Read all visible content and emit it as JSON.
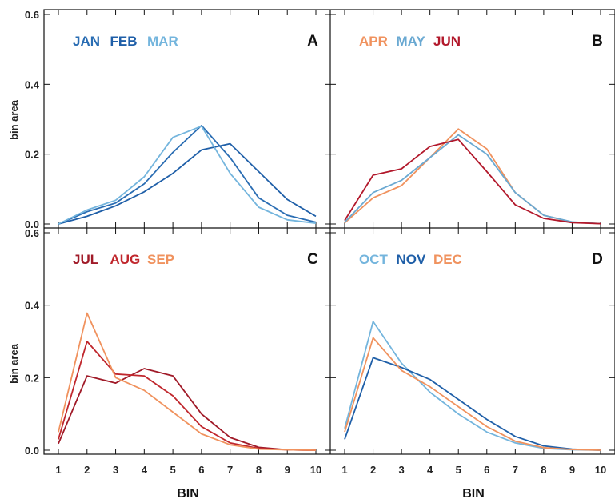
{
  "figure": {
    "xlabel": "BIN",
    "ylabel": "bin area",
    "x_ticks": [
      "1",
      "2",
      "3",
      "4",
      "5",
      "6",
      "7",
      "8",
      "9",
      "10"
    ],
    "y_ticks": [
      "0.0",
      "0.2",
      "0.4",
      "0.6"
    ]
  },
  "chart_data": [
    {
      "type": "line",
      "panel": "A",
      "xlabel": "",
      "ylabel": "bin area",
      "xlim": [
        0.5,
        10.5
      ],
      "ylim": [
        0,
        0.6
      ],
      "x": [
        1,
        2,
        3,
        4,
        5,
        6,
        7,
        8,
        9,
        10
      ],
      "series": [
        {
          "name": "JAN",
          "color": "#2a6db3",
          "values": [
            0.0,
            0.035,
            0.06,
            0.115,
            0.205,
            0.282,
            0.19,
            0.075,
            0.025,
            0.005
          ]
        },
        {
          "name": "FEB",
          "color": "#1f5fa8",
          "values": [
            0.0,
            0.022,
            0.052,
            0.092,
            0.145,
            0.212,
            0.23,
            0.15,
            0.07,
            0.022
          ]
        },
        {
          "name": "MAR",
          "color": "#74b5dd",
          "values": [
            0.0,
            0.04,
            0.068,
            0.135,
            0.248,
            0.28,
            0.145,
            0.048,
            0.012,
            0.002
          ]
        }
      ]
    },
    {
      "type": "line",
      "panel": "B",
      "xlim": [
        0.5,
        10.5
      ],
      "ylim": [
        0,
        0.6
      ],
      "x": [
        1,
        2,
        3,
        4,
        5,
        6,
        7,
        8,
        9,
        10
      ],
      "series": [
        {
          "name": "APR",
          "color": "#f0925e",
          "values": [
            0.003,
            0.075,
            0.11,
            0.19,
            0.272,
            0.215,
            0.09,
            0.025,
            0.005,
            0.001
          ]
        },
        {
          "name": "MAY",
          "color": "#6aa9d2",
          "values": [
            0.005,
            0.09,
            0.125,
            0.19,
            0.255,
            0.2,
            0.09,
            0.025,
            0.006,
            0.001
          ]
        },
        {
          "name": "JUN",
          "color": "#b2182b",
          "values": [
            0.01,
            0.14,
            0.158,
            0.222,
            0.242,
            0.15,
            0.055,
            0.016,
            0.004,
            0.001
          ]
        }
      ]
    },
    {
      "type": "line",
      "panel": "C",
      "xlabel": "BIN",
      "ylabel": "bin area",
      "xlim": [
        0.5,
        10.5
      ],
      "ylim": [
        0,
        0.6
      ],
      "x": [
        1,
        2,
        3,
        4,
        5,
        6,
        7,
        8,
        9,
        10
      ],
      "series": [
        {
          "name": "JUL",
          "color": "#a01a28",
          "values": [
            0.018,
            0.205,
            0.185,
            0.225,
            0.205,
            0.1,
            0.035,
            0.008,
            0.001,
            0.0
          ]
        },
        {
          "name": "AUG",
          "color": "#c0272d",
          "values": [
            0.03,
            0.3,
            0.21,
            0.205,
            0.15,
            0.065,
            0.02,
            0.005,
            0.001,
            0.0
          ]
        },
        {
          "name": "SEP",
          "color": "#f0925e",
          "values": [
            0.05,
            0.378,
            0.2,
            0.165,
            0.105,
            0.045,
            0.015,
            0.003,
            0.001,
            0.0
          ]
        }
      ]
    },
    {
      "type": "line",
      "panel": "D",
      "xlabel": "BIN",
      "xlim": [
        0.5,
        10.5
      ],
      "ylim": [
        0,
        0.6
      ],
      "x": [
        1,
        2,
        3,
        4,
        5,
        6,
        7,
        8,
        9,
        10
      ],
      "series": [
        {
          "name": "OCT",
          "color": "#74b5dd",
          "values": [
            0.06,
            0.355,
            0.24,
            0.16,
            0.1,
            0.05,
            0.02,
            0.005,
            0.001,
            0.0
          ]
        },
        {
          "name": "NOV",
          "color": "#1f5fa8",
          "values": [
            0.03,
            0.255,
            0.228,
            0.195,
            0.14,
            0.085,
            0.038,
            0.012,
            0.003,
            0.0
          ]
        },
        {
          "name": "DEC",
          "color": "#f0925e",
          "values": [
            0.05,
            0.31,
            0.22,
            0.175,
            0.12,
            0.065,
            0.025,
            0.007,
            0.002,
            0.0
          ]
        }
      ]
    }
  ]
}
